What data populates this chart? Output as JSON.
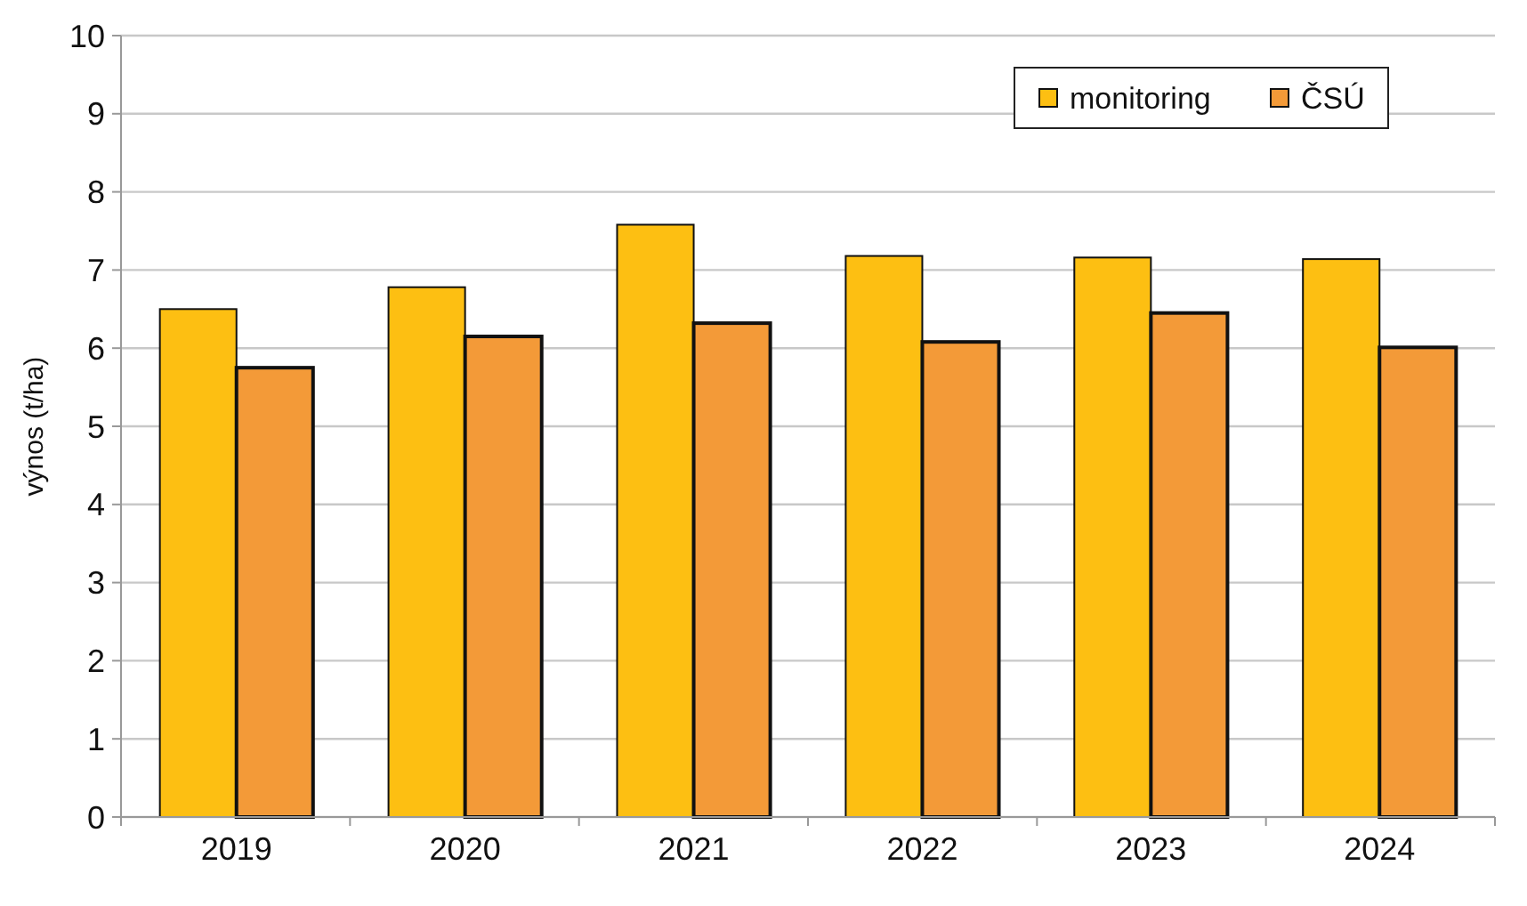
{
  "chart_data": {
    "type": "bar",
    "ylabel": "výnos (t/ha)",
    "categories": [
      "2019",
      "2020",
      "2021",
      "2022",
      "2023",
      "2024"
    ],
    "series": [
      {
        "name": "monitoring",
        "color": "#fdbf12",
        "values": [
          6.5,
          6.78,
          7.58,
          7.18,
          7.16,
          7.14
        ]
      },
      {
        "name": "ČSÚ",
        "color": "#f39a38",
        "values": [
          5.75,
          6.15,
          6.32,
          6.08,
          6.45,
          6.01
        ]
      }
    ],
    "ylim": [
      0,
      10
    ],
    "yticks": [
      0,
      1,
      2,
      3,
      4,
      5,
      6,
      7,
      8,
      9,
      10
    ],
    "grid": "y",
    "legend": "top right"
  }
}
